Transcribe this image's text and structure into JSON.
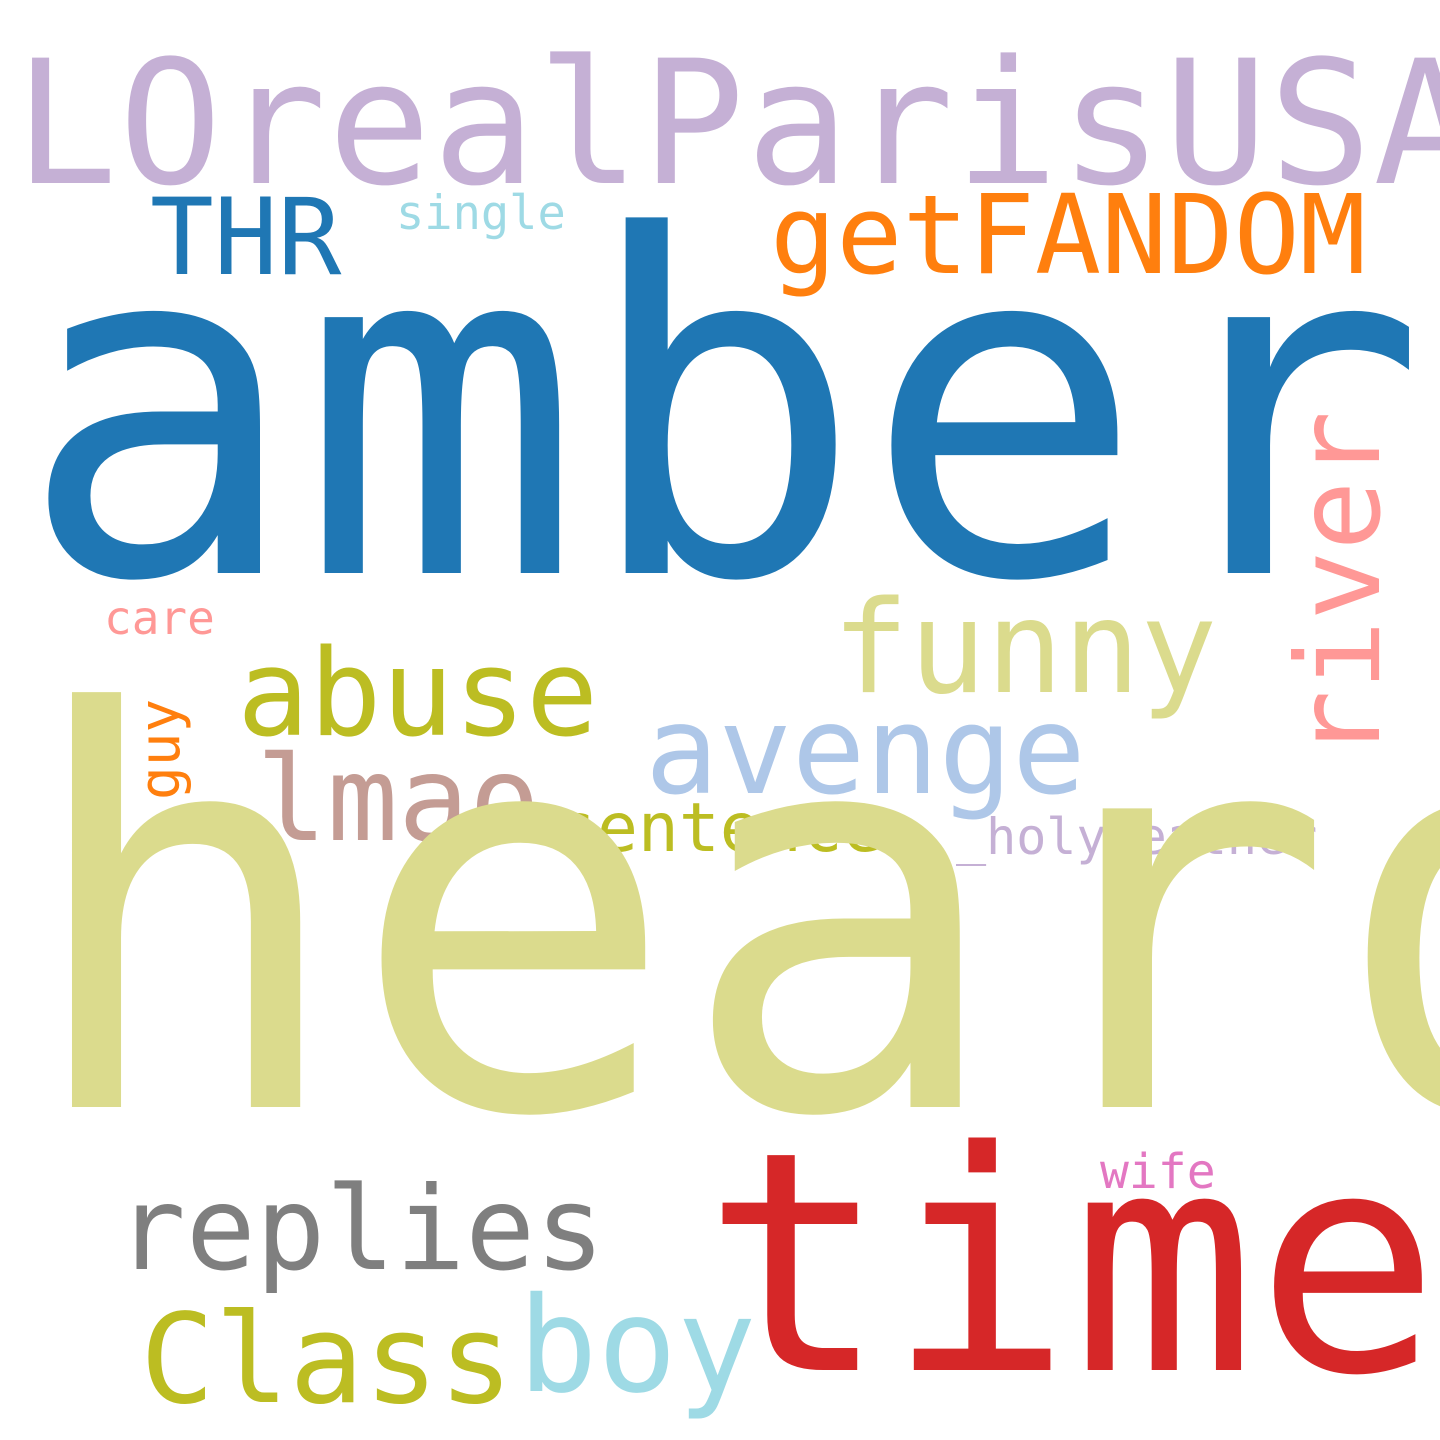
{
  "words": {
    "loreal": {
      "text": "LOrealParisUSA",
      "color": "#c5b0d5"
    },
    "thr": {
      "text": "THR",
      "color": "#1f77b4"
    },
    "single": {
      "text": "single",
      "color": "#9edae5"
    },
    "getfandom": {
      "text": "getFANDOM",
      "color": "#ff7f0e"
    },
    "amber": {
      "text": "amber",
      "color": "#1f77b4"
    },
    "river": {
      "text": "river",
      "color": "#ff9896"
    },
    "funny": {
      "text": "funny",
      "color": "#dbdb8d"
    },
    "care": {
      "text": "care",
      "color": "#ff9896"
    },
    "abuse": {
      "text": "abuse",
      "color": "#bcbd22"
    },
    "avenge": {
      "text": "avenge",
      "color": "#aec7e8"
    },
    "guy": {
      "text": "guy",
      "color": "#ff7f0e"
    },
    "lmao": {
      "text": "lmao",
      "color": "#c49c94"
    },
    "sentence": {
      "text": "sentence",
      "color": "#bcbd22"
    },
    "holyweather": {
      "text": "_holyweather",
      "color": "#c5b0d5"
    },
    "heard": {
      "text": "heard",
      "color": "#dbdb8d"
    },
    "wife": {
      "text": "wife",
      "color": "#e377c2"
    },
    "replies": {
      "text": "replies",
      "color": "#7f7f7f"
    },
    "time": {
      "text": "time",
      "color": "#d62728"
    },
    "boy": {
      "text": "boy",
      "color": "#9edae5"
    },
    "class": {
      "text": "Class",
      "color": "#bcbd22"
    }
  }
}
